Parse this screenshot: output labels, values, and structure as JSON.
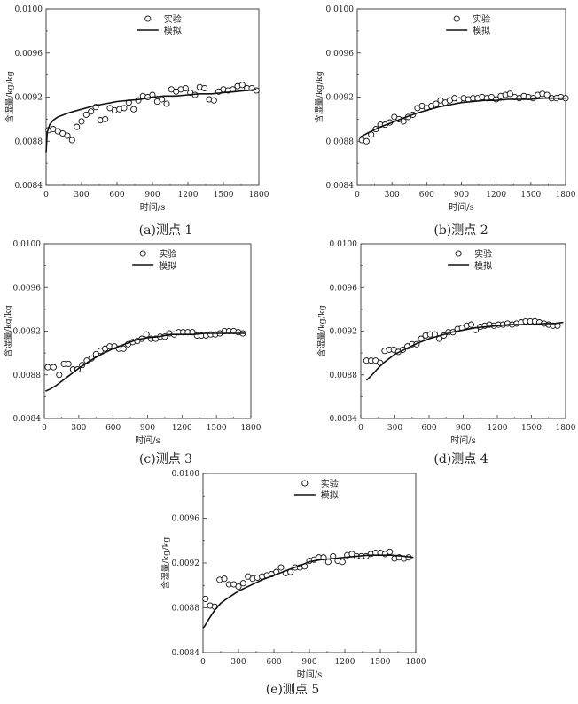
{
  "chart_data": [
    {
      "type": "scatter+line",
      "caption": "(a)测点 1",
      "xlabel": "时间/s",
      "ylabel": "含湿量/kg/kg",
      "xlim": [
        0,
        1800
      ],
      "ylim": [
        0.0084,
        0.01
      ],
      "xticks": [
        "0",
        "300",
        "600",
        "900",
        "1200",
        "1500",
        "1800"
      ],
      "yticks": [
        "0.0084",
        "0.0088",
        "0.0092",
        "0.0096",
        "0.0100"
      ],
      "legend": {
        "position": "top-center",
        "entries": [
          {
            "name": "实验",
            "marker": "circle"
          },
          {
            "name": "模拟",
            "marker": "line"
          }
        ]
      },
      "series": [
        {
          "name": "实验",
          "kind": "scatter",
          "x": [
            20,
            60,
            100,
            140,
            180,
            220,
            260,
            300,
            340,
            380,
            420,
            460,
            500,
            540,
            580,
            620,
            660,
            700,
            740,
            780,
            820,
            860,
            900,
            940,
            980,
            1020,
            1060,
            1100,
            1140,
            1180,
            1220,
            1260,
            1300,
            1340,
            1380,
            1420,
            1460,
            1500,
            1540,
            1580,
            1620,
            1660,
            1700,
            1740,
            1780
          ],
          "y": [
            0.0089,
            0.00891,
            0.00889,
            0.00887,
            0.00885,
            0.00881,
            0.00893,
            0.00898,
            0.00904,
            0.00907,
            0.00911,
            0.00899,
            0.009,
            0.0091,
            0.00908,
            0.00909,
            0.0091,
            0.00915,
            0.00909,
            0.00917,
            0.00921,
            0.0092,
            0.00922,
            0.00916,
            0.00918,
            0.00914,
            0.00927,
            0.00925,
            0.00927,
            0.00928,
            0.00924,
            0.00922,
            0.00929,
            0.00928,
            0.00918,
            0.00917,
            0.00925,
            0.00927,
            0.00926,
            0.00927,
            0.0093,
            0.00931,
            0.00928,
            0.00928,
            0.00926
          ]
        },
        {
          "name": "模拟",
          "kind": "line",
          "x": [
            0,
            10,
            30,
            60,
            100,
            150,
            200,
            300,
            400,
            500,
            600,
            700,
            800,
            900,
            1000,
            1100,
            1200,
            1300,
            1400,
            1500,
            1600,
            1700,
            1780
          ],
          "y": [
            0.0087,
            0.00888,
            0.00895,
            0.00899,
            0.00902,
            0.00904,
            0.00906,
            0.00909,
            0.00912,
            0.00914,
            0.00916,
            0.00917,
            0.00918,
            0.0092,
            0.00921,
            0.00921,
            0.00922,
            0.00923,
            0.00923,
            0.00924,
            0.00925,
            0.00926,
            0.00927
          ]
        }
      ]
    },
    {
      "type": "scatter+line",
      "caption": "(b)测点 2",
      "xlabel": "时间/s",
      "ylabel": "含湿量/kg/kg",
      "xlim": [
        0,
        1800
      ],
      "ylim": [
        0.0084,
        0.01
      ],
      "xticks": [
        "0",
        "300",
        "600",
        "900",
        "1200",
        "1500",
        "1800"
      ],
      "yticks": [
        "0.0084",
        "0.0088",
        "0.0092",
        "0.0096",
        "0.0100"
      ],
      "legend": {
        "position": "top-center",
        "entries": [
          {
            "name": "实验",
            "marker": "circle"
          },
          {
            "name": "模拟",
            "marker": "line"
          }
        ]
      },
      "series": [
        {
          "name": "实验",
          "kind": "scatter",
          "x": [
            40,
            80,
            120,
            160,
            200,
            240,
            280,
            320,
            360,
            400,
            440,
            480,
            520,
            560,
            600,
            640,
            680,
            720,
            760,
            800,
            840,
            880,
            920,
            960,
            1000,
            1040,
            1080,
            1120,
            1160,
            1200,
            1240,
            1280,
            1320,
            1360,
            1400,
            1440,
            1480,
            1520,
            1560,
            1600,
            1640,
            1680,
            1720,
            1760,
            1800
          ],
          "y": [
            0.00881,
            0.0088,
            0.00886,
            0.00891,
            0.00895,
            0.00895,
            0.00897,
            0.00902,
            0.009,
            0.00898,
            0.00902,
            0.00904,
            0.0091,
            0.00912,
            0.0091,
            0.00912,
            0.00914,
            0.00917,
            0.00915,
            0.00917,
            0.00919,
            0.00917,
            0.00919,
            0.00918,
            0.00919,
            0.00919,
            0.0092,
            0.00919,
            0.0092,
            0.00918,
            0.00921,
            0.00922,
            0.00923,
            0.0092,
            0.00919,
            0.00921,
            0.0092,
            0.00919,
            0.00922,
            0.00923,
            0.00922,
            0.00919,
            0.00919,
            0.0092,
            0.00919
          ]
        },
        {
          "name": "模拟",
          "kind": "line",
          "x": [
            30,
            100,
            200,
            300,
            400,
            500,
            600,
            700,
            800,
            900,
            1000,
            1100,
            1200,
            1300,
            1400,
            1500,
            1600,
            1700,
            1800
          ],
          "y": [
            0.00884,
            0.00888,
            0.00893,
            0.00897,
            0.00901,
            0.00905,
            0.00908,
            0.00911,
            0.00913,
            0.00915,
            0.00916,
            0.00917,
            0.00917,
            0.00918,
            0.00918,
            0.00918,
            0.00919,
            0.00919,
            0.00919
          ]
        }
      ]
    },
    {
      "type": "scatter+line",
      "caption": "(c)测点 3",
      "xlabel": "时间/s",
      "ylabel": "含湿量/kg/kg",
      "xlim": [
        0,
        1800
      ],
      "ylim": [
        0.0084,
        0.01
      ],
      "xticks": [
        "0",
        "300",
        "600",
        "900",
        "1200",
        "1500",
        "1800"
      ],
      "yticks": [
        "0.0084",
        "0.0088",
        "0.0092",
        "0.0096",
        "0.0100"
      ],
      "legend": {
        "position": "top-center",
        "entries": [
          {
            "name": "实验",
            "marker": "circle"
          },
          {
            "name": "模拟",
            "marker": "line"
          }
        ]
      },
      "series": [
        {
          "name": "实验",
          "kind": "scatter",
          "x": [
            30,
            80,
            130,
            170,
            210,
            250,
            290,
            330,
            370,
            410,
            450,
            490,
            530,
            570,
            610,
            650,
            690,
            730,
            770,
            810,
            850,
            890,
            930,
            970,
            1010,
            1050,
            1090,
            1130,
            1170,
            1210,
            1250,
            1290,
            1330,
            1370,
            1410,
            1450,
            1490,
            1530,
            1570,
            1610,
            1650,
            1690,
            1730
          ],
          "y": [
            0.00887,
            0.00887,
            0.0088,
            0.0089,
            0.0089,
            0.00885,
            0.00885,
            0.00889,
            0.00893,
            0.00895,
            0.00899,
            0.00902,
            0.00904,
            0.00906,
            0.00906,
            0.00904,
            0.00904,
            0.00908,
            0.0091,
            0.00911,
            0.00913,
            0.00917,
            0.00913,
            0.00913,
            0.00915,
            0.00915,
            0.00918,
            0.00917,
            0.00919,
            0.00919,
            0.00919,
            0.00919,
            0.00916,
            0.00916,
            0.00916,
            0.00917,
            0.00917,
            0.00918,
            0.0092,
            0.0092,
            0.0092,
            0.00919,
            0.00918
          ]
        },
        {
          "name": "模拟",
          "kind": "line",
          "x": [
            10,
            50,
            100,
            150,
            200,
            300,
            400,
            500,
            600,
            700,
            800,
            900,
            1000,
            1100,
            1200,
            1300,
            1400,
            1500,
            1600,
            1700,
            1760
          ],
          "y": [
            0.00865,
            0.00867,
            0.0087,
            0.00874,
            0.00878,
            0.00886,
            0.00893,
            0.00899,
            0.00904,
            0.00908,
            0.00912,
            0.00914,
            0.00915,
            0.00917,
            0.00917,
            0.00917,
            0.00918,
            0.00918,
            0.00918,
            0.00918,
            0.00918
          ]
        }
      ]
    },
    {
      "type": "scatter+line",
      "caption": "(d)测点 4",
      "xlabel": "时间/s",
      "ylabel": "含湿量/kg/kg",
      "xlim": [
        0,
        1800
      ],
      "ylim": [
        0.0084,
        0.01
      ],
      "xticks": [
        "0",
        "300",
        "600",
        "900",
        "1200",
        "1500",
        "1800"
      ],
      "yticks": [
        "0.0084",
        "0.0088",
        "0.0092",
        "0.0096",
        "0.0100"
      ],
      "legend": {
        "position": "top-center",
        "entries": [
          {
            "name": "实验",
            "marker": "circle"
          },
          {
            "name": "模拟",
            "marker": "line"
          }
        ]
      },
      "series": [
        {
          "name": "实验",
          "kind": "scatter",
          "x": [
            50,
            90,
            130,
            170,
            210,
            250,
            290,
            330,
            370,
            410,
            450,
            490,
            530,
            570,
            610,
            650,
            690,
            730,
            770,
            810,
            850,
            890,
            930,
            970,
            1010,
            1050,
            1090,
            1130,
            1170,
            1210,
            1250,
            1290,
            1330,
            1370,
            1410,
            1450,
            1490,
            1530,
            1570,
            1610,
            1650,
            1690,
            1730
          ],
          "y": [
            0.00893,
            0.00893,
            0.00893,
            0.00891,
            0.00902,
            0.00903,
            0.00903,
            0.00901,
            0.00903,
            0.00906,
            0.00908,
            0.00908,
            0.00913,
            0.00916,
            0.00917,
            0.00917,
            0.00913,
            0.00916,
            0.00919,
            0.00919,
            0.00922,
            0.00923,
            0.00925,
            0.00926,
            0.00921,
            0.00924,
            0.00925,
            0.00926,
            0.00925,
            0.00926,
            0.00926,
            0.00927,
            0.00926,
            0.00927,
            0.00928,
            0.00929,
            0.00929,
            0.00929,
            0.00928,
            0.00927,
            0.00926,
            0.00925,
            0.00925
          ]
        },
        {
          "name": "模拟",
          "kind": "line",
          "x": [
            50,
            100,
            150,
            200,
            300,
            400,
            500,
            600,
            700,
            800,
            900,
            1000,
            1100,
            1200,
            1300,
            1400,
            1500,
            1600,
            1700,
            1780
          ],
          "y": [
            0.00875,
            0.0088,
            0.00886,
            0.00891,
            0.00899,
            0.00904,
            0.00909,
            0.00913,
            0.00916,
            0.00919,
            0.00921,
            0.00923,
            0.00924,
            0.00925,
            0.00926,
            0.00926,
            0.00926,
            0.00927,
            0.00927,
            0.00928
          ]
        }
      ]
    },
    {
      "type": "scatter+line",
      "caption": "(e)测点 5",
      "xlabel": "时间/s",
      "ylabel": "含湿量/kg/kg",
      "xlim": [
        0,
        1800
      ],
      "ylim": [
        0.0084,
        0.01
      ],
      "xticks": [
        "0",
        "300",
        "600",
        "900",
        "1200",
        "1500",
        "1800"
      ],
      "yticks": [
        "0.0084",
        "0.0088",
        "0.0092",
        "0.0096",
        "0.0100"
      ],
      "legend": {
        "position": "top-center",
        "entries": [
          {
            "name": "实验",
            "marker": "circle"
          },
          {
            "name": "模拟",
            "marker": "line"
          }
        ]
      },
      "series": [
        {
          "name": "实验",
          "kind": "scatter",
          "x": [
            20,
            60,
            100,
            140,
            180,
            220,
            260,
            300,
            340,
            380,
            420,
            460,
            500,
            540,
            580,
            620,
            660,
            700,
            740,
            780,
            820,
            860,
            900,
            940,
            980,
            1020,
            1060,
            1100,
            1140,
            1180,
            1220,
            1260,
            1300,
            1340,
            1380,
            1420,
            1460,
            1500,
            1540,
            1580,
            1620,
            1660,
            1700,
            1740
          ],
          "y": [
            0.00888,
            0.00882,
            0.00881,
            0.00905,
            0.00906,
            0.00901,
            0.00901,
            0.00899,
            0.00902,
            0.00908,
            0.00906,
            0.00907,
            0.00908,
            0.00909,
            0.0091,
            0.00912,
            0.00916,
            0.00911,
            0.00912,
            0.00916,
            0.00916,
            0.00917,
            0.00922,
            0.00923,
            0.00925,
            0.00925,
            0.00921,
            0.00926,
            0.00922,
            0.00921,
            0.00927,
            0.00928,
            0.00926,
            0.00926,
            0.00926,
            0.00928,
            0.00929,
            0.00929,
            0.00928,
            0.0093,
            0.00924,
            0.00925,
            0.00924,
            0.00925
          ]
        },
        {
          "name": "模拟",
          "kind": "line",
          "x": [
            0,
            10,
            50,
            100,
            150,
            200,
            300,
            400,
            500,
            600,
            700,
            800,
            900,
            1000,
            1100,
            1200,
            1300,
            1400,
            1500,
            1600,
            1700,
            1780
          ],
          "y": [
            0.00862,
            0.00863,
            0.0087,
            0.00878,
            0.00884,
            0.00888,
            0.00895,
            0.009,
            0.00905,
            0.00909,
            0.00913,
            0.00917,
            0.00921,
            0.00923,
            0.00924,
            0.00925,
            0.00926,
            0.00927,
            0.00927,
            0.00927,
            0.00926,
            0.00925
          ]
        }
      ]
    }
  ]
}
